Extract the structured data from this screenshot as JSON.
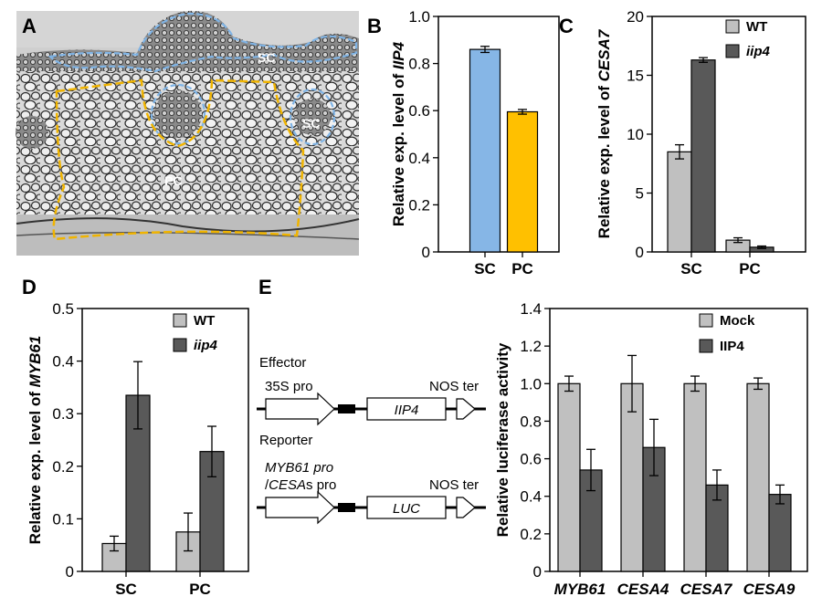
{
  "panels": {
    "a": "A",
    "b": "B",
    "c": "C",
    "d": "D",
    "e": "E"
  },
  "micrograph": {
    "label_sc_top": "SC",
    "label_sc_right": "SC",
    "label_pc": "PC",
    "outline_sc_color": "#7fb4e6",
    "outline_pc_color": "#f0b400"
  },
  "chart_data": [
    {
      "id": "B",
      "type": "bar",
      "ylabel_prefix": "Relative exp. level of ",
      "ylabel_gene": "IIP4",
      "categories": [
        "SC",
        "PC"
      ],
      "values": [
        0.86,
        0.595
      ],
      "errors": [
        0.013,
        0.01
      ],
      "colors": [
        "#86b6e6",
        "#ffc000"
      ],
      "ylim": [
        0,
        1.0
      ],
      "yticks": [
        "0",
        "0.2",
        "0.4",
        "0.6",
        "0.8",
        "1.0"
      ]
    },
    {
      "id": "C",
      "type": "bar",
      "ylabel_prefix": "Relative exp. level of ",
      "ylabel_gene": "CESA7",
      "categories": [
        "SC",
        "PC"
      ],
      "series": [
        {
          "name": "WT",
          "values": [
            8.5,
            1.0
          ],
          "errors": [
            0.6,
            0.2
          ],
          "color": "#c0c0c0"
        },
        {
          "name": "iip4",
          "values": [
            16.3,
            0.4
          ],
          "errors": [
            0.2,
            0.1
          ],
          "color": "#595959"
        }
      ],
      "ylim": [
        0,
        20
      ],
      "yticks": [
        "0",
        "5",
        "10",
        "15",
        "20"
      ]
    },
    {
      "id": "D",
      "type": "bar",
      "ylabel_prefix": "Relative exp. level of ",
      "ylabel_gene": "MYB61",
      "categories": [
        "SC",
        "PC"
      ],
      "series": [
        {
          "name": "WT",
          "values": [
            0.053,
            0.075
          ],
          "errors": [
            0.014,
            0.036
          ],
          "color": "#c0c0c0"
        },
        {
          "name": "iip4",
          "values": [
            0.335,
            0.228
          ],
          "errors": [
            0.064,
            0.048
          ],
          "color": "#595959"
        }
      ],
      "ylim": [
        0,
        0.5
      ],
      "yticks": [
        "0",
        "0.1",
        "0.2",
        "0.3",
        "0.4",
        "0.5"
      ]
    },
    {
      "id": "E",
      "type": "bar",
      "ylabel": "Relative luciferase activity",
      "categories": [
        "MYB61",
        "CESA4",
        "CESA7",
        "CESA9"
      ],
      "series": [
        {
          "name": "Mock",
          "values": [
            1.0,
            1.0,
            1.0,
            1.0
          ],
          "errors": [
            0.04,
            0.15,
            0.04,
            0.03
          ],
          "color": "#c0c0c0"
        },
        {
          "name": "IIP4",
          "values": [
            0.54,
            0.66,
            0.46,
            0.41
          ],
          "errors": [
            0.11,
            0.15,
            0.08,
            0.05
          ],
          "color": "#595959"
        }
      ],
      "ylim": [
        0,
        1.4
      ],
      "yticks": [
        "0",
        "0.2",
        "0.4",
        "0.6",
        "0.8",
        "1.0",
        "1.2",
        "1.4"
      ]
    }
  ],
  "diagram": {
    "effector_title": "Effector",
    "effector_promoter": "35S pro",
    "effector_gene": "IIP4",
    "effector_terminator": "NOS ter",
    "reporter_title": "Reporter",
    "reporter_promoter_line1": "MYB61 pro",
    "reporter_promoter_line2_prefix": "/",
    "reporter_promoter_line2_italic": "CESA",
    "reporter_promoter_line2_suffix": "s pro",
    "reporter_gene": "LUC",
    "reporter_terminator": "NOS ter"
  }
}
